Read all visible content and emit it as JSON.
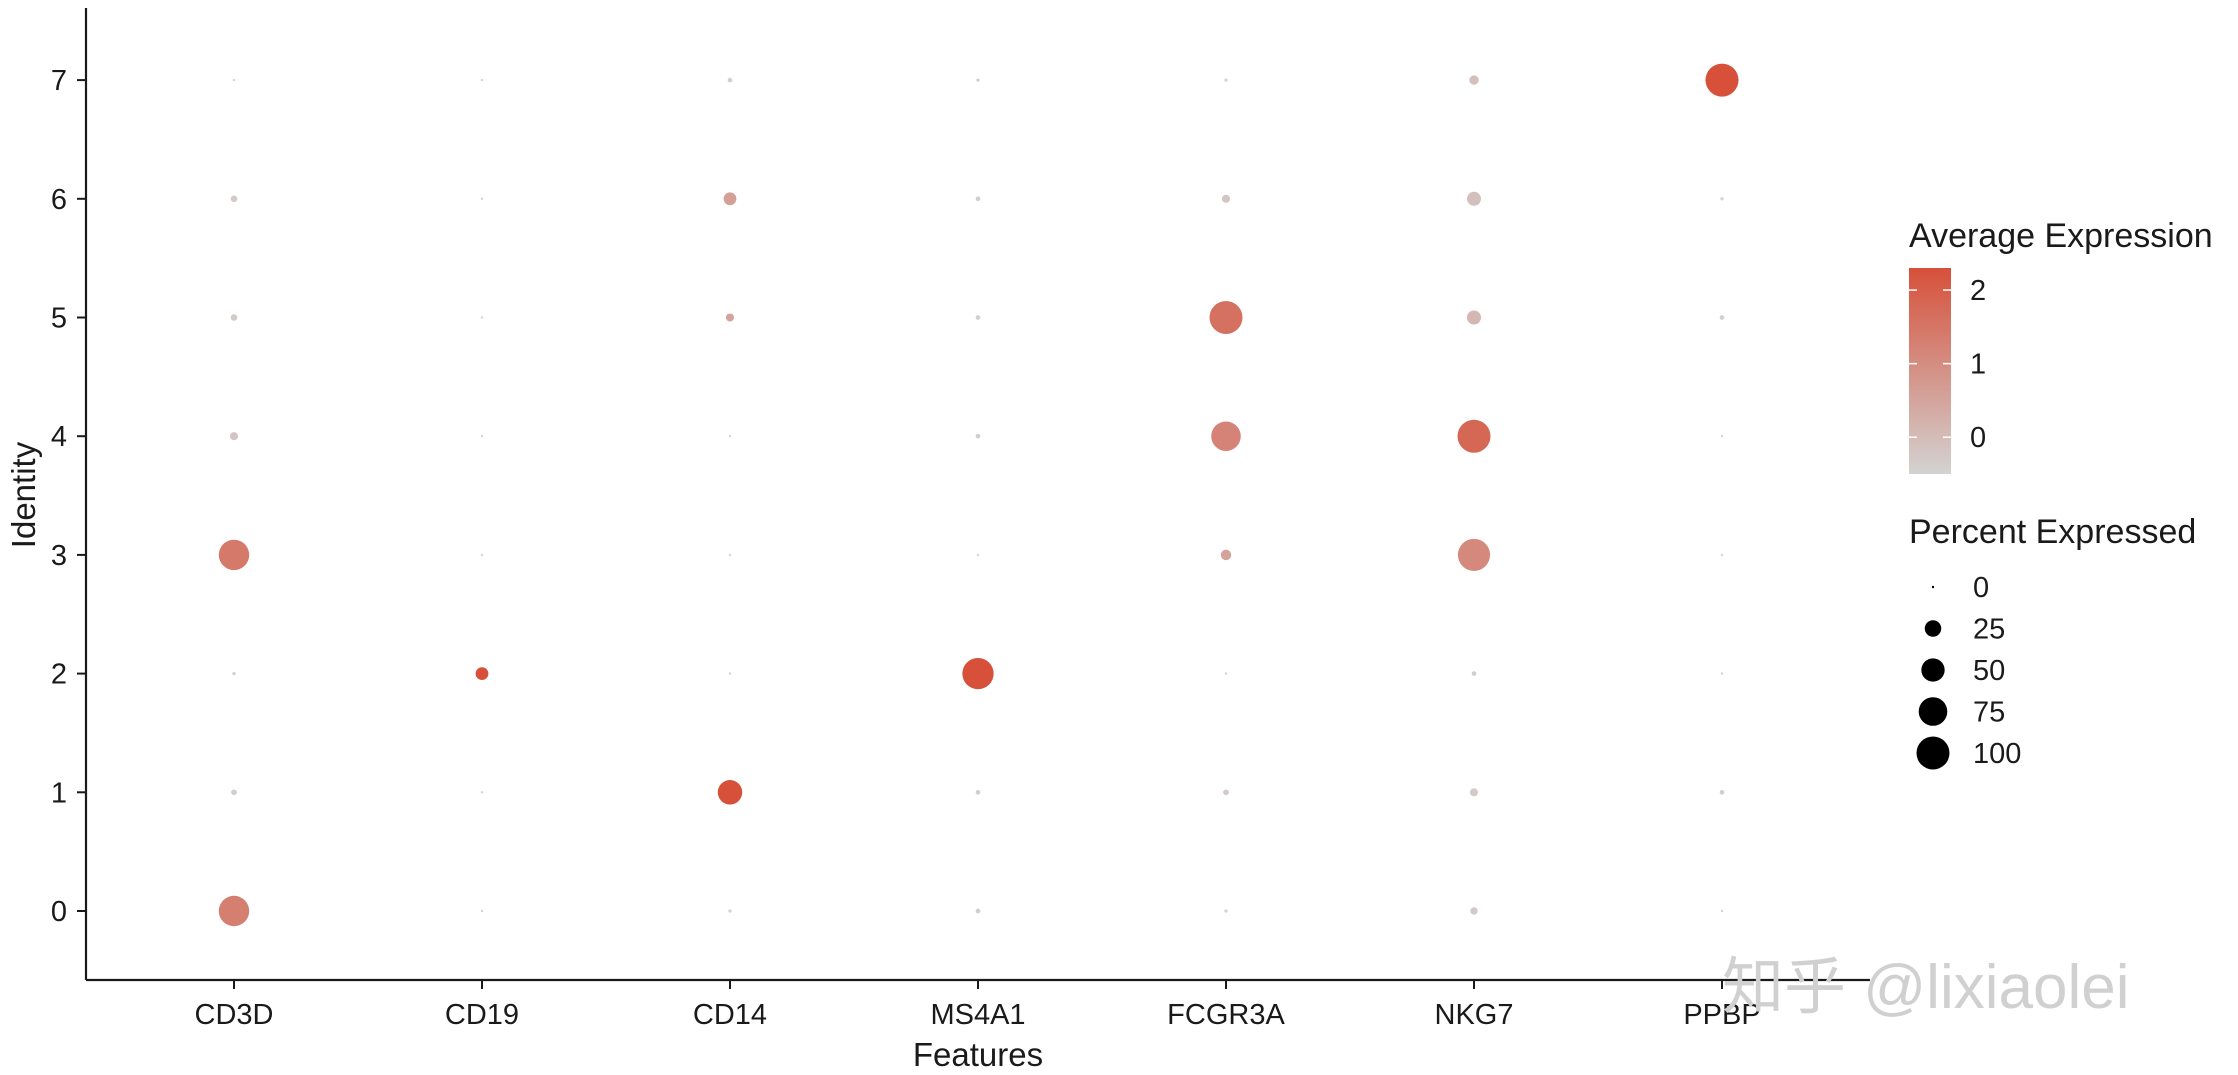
{
  "chart_data": {
    "type": "dot",
    "xlabel": "Features",
    "ylabel": "Identity",
    "features": [
      "CD3D",
      "CD19",
      "CD14",
      "MS4A1",
      "FCGR3A",
      "NKG7",
      "PPBP"
    ],
    "identities": [
      "0",
      "1",
      "2",
      "3",
      "4",
      "5",
      "6",
      "7"
    ],
    "color_scale": {
      "title": "Average Expression",
      "low": "#d3d3d3",
      "high": "#d6503a",
      "range": [
        -0.5,
        2.3
      ],
      "ticks": [
        0,
        1,
        2
      ]
    },
    "size_scale": {
      "title": "Percent Expressed",
      "ticks": [
        0,
        25,
        50,
        75,
        100
      ]
    },
    "points": [
      {
        "feature": "CD3D",
        "identity": "0",
        "avg_exp": 1.3,
        "pct_exp": 85
      },
      {
        "feature": "CD3D",
        "identity": "1",
        "avg_exp": -0.4,
        "pct_exp": 3
      },
      {
        "feature": "CD3D",
        "identity": "2",
        "avg_exp": -0.4,
        "pct_exp": 1
      },
      {
        "feature": "CD3D",
        "identity": "3",
        "avg_exp": 1.4,
        "pct_exp": 85
      },
      {
        "feature": "CD3D",
        "identity": "4",
        "avg_exp": -0.2,
        "pct_exp": 6
      },
      {
        "feature": "CD3D",
        "identity": "5",
        "avg_exp": -0.3,
        "pct_exp": 4
      },
      {
        "feature": "CD3D",
        "identity": "6",
        "avg_exp": -0.3,
        "pct_exp": 4
      },
      {
        "feature": "CD3D",
        "identity": "7",
        "avg_exp": -0.5,
        "pct_exp": 0
      },
      {
        "feature": "CD19",
        "identity": "0",
        "avg_exp": -0.5,
        "pct_exp": 0.5
      },
      {
        "feature": "CD19",
        "identity": "1",
        "avg_exp": -0.5,
        "pct_exp": 0.5
      },
      {
        "feature": "CD19",
        "identity": "2",
        "avg_exp": 2.3,
        "pct_exp": 15
      },
      {
        "feature": "CD19",
        "identity": "3",
        "avg_exp": -0.5,
        "pct_exp": 0.5
      },
      {
        "feature": "CD19",
        "identity": "4",
        "avg_exp": -0.5,
        "pct_exp": 0.5
      },
      {
        "feature": "CD19",
        "identity": "5",
        "avg_exp": -0.5,
        "pct_exp": 0.5
      },
      {
        "feature": "CD19",
        "identity": "6",
        "avg_exp": -0.5,
        "pct_exp": 0.5
      },
      {
        "feature": "CD19",
        "identity": "7",
        "avg_exp": -0.5,
        "pct_exp": 0
      },
      {
        "feature": "CD14",
        "identity": "0",
        "avg_exp": -0.5,
        "pct_exp": 1
      },
      {
        "feature": "CD14",
        "identity": "1",
        "avg_exp": 2.3,
        "pct_exp": 55
      },
      {
        "feature": "CD14",
        "identity": "2",
        "avg_exp": -0.5,
        "pct_exp": 0.5
      },
      {
        "feature": "CD14",
        "identity": "3",
        "avg_exp": -0.5,
        "pct_exp": 0.5
      },
      {
        "feature": "CD14",
        "identity": "4",
        "avg_exp": -0.5,
        "pct_exp": 0.5
      },
      {
        "feature": "CD14",
        "identity": "5",
        "avg_exp": 0.5,
        "pct_exp": 6
      },
      {
        "feature": "CD14",
        "identity": "6",
        "avg_exp": 0.6,
        "pct_exp": 15
      },
      {
        "feature": "CD14",
        "identity": "7",
        "avg_exp": -0.4,
        "pct_exp": 2
      },
      {
        "feature": "MS4A1",
        "identity": "0",
        "avg_exp": -0.4,
        "pct_exp": 2
      },
      {
        "feature": "MS4A1",
        "identity": "1",
        "avg_exp": -0.4,
        "pct_exp": 2
      },
      {
        "feature": "MS4A1",
        "identity": "2",
        "avg_exp": 2.3,
        "pct_exp": 90
      },
      {
        "feature": "MS4A1",
        "identity": "3",
        "avg_exp": -0.5,
        "pct_exp": 0.5
      },
      {
        "feature": "MS4A1",
        "identity": "4",
        "avg_exp": -0.4,
        "pct_exp": 2
      },
      {
        "feature": "MS4A1",
        "identity": "5",
        "avg_exp": -0.4,
        "pct_exp": 2
      },
      {
        "feature": "MS4A1",
        "identity": "6",
        "avg_exp": -0.4,
        "pct_exp": 2
      },
      {
        "feature": "MS4A1",
        "identity": "7",
        "avg_exp": -0.4,
        "pct_exp": 1
      },
      {
        "feature": "FCGR3A",
        "identity": "0",
        "avg_exp": -0.5,
        "pct_exp": 1
      },
      {
        "feature": "FCGR3A",
        "identity": "1",
        "avg_exp": -0.3,
        "pct_exp": 3
      },
      {
        "feature": "FCGR3A",
        "identity": "2",
        "avg_exp": -0.5,
        "pct_exp": 0.5
      },
      {
        "feature": "FCGR3A",
        "identity": "3",
        "avg_exp": 0.5,
        "pct_exp": 10
      },
      {
        "feature": "FCGR3A",
        "identity": "4",
        "avg_exp": 1.2,
        "pct_exp": 80
      },
      {
        "feature": "FCGR3A",
        "identity": "5",
        "avg_exp": 1.6,
        "pct_exp": 100
      },
      {
        "feature": "FCGR3A",
        "identity": "6",
        "avg_exp": -0.2,
        "pct_exp": 6
      },
      {
        "feature": "FCGR3A",
        "identity": "7",
        "avg_exp": -0.5,
        "pct_exp": 1
      },
      {
        "feature": "NKG7",
        "identity": "0",
        "avg_exp": -0.3,
        "pct_exp": 5
      },
      {
        "feature": "NKG7",
        "identity": "1",
        "avg_exp": -0.3,
        "pct_exp": 6
      },
      {
        "feature": "NKG7",
        "identity": "2",
        "avg_exp": -0.4,
        "pct_exp": 2
      },
      {
        "feature": "NKG7",
        "identity": "3",
        "avg_exp": 1.1,
        "pct_exp": 95
      },
      {
        "feature": "NKG7",
        "identity": "4",
        "avg_exp": 1.8,
        "pct_exp": 100
      },
      {
        "feature": "NKG7",
        "identity": "5",
        "avg_exp": 0.1,
        "pct_exp": 18
      },
      {
        "feature": "NKG7",
        "identity": "6",
        "avg_exp": -0.1,
        "pct_exp": 18
      },
      {
        "feature": "NKG7",
        "identity": "7",
        "avg_exp": -0.1,
        "pct_exp": 8
      },
      {
        "feature": "PPBP",
        "identity": "0",
        "avg_exp": -0.5,
        "pct_exp": 0.5
      },
      {
        "feature": "PPBP",
        "identity": "1",
        "avg_exp": -0.4,
        "pct_exp": 2
      },
      {
        "feature": "PPBP",
        "identity": "2",
        "avg_exp": -0.5,
        "pct_exp": 0.5
      },
      {
        "feature": "PPBP",
        "identity": "3",
        "avg_exp": -0.5,
        "pct_exp": 0.5
      },
      {
        "feature": "PPBP",
        "identity": "4",
        "avg_exp": -0.5,
        "pct_exp": 0.5
      },
      {
        "feature": "PPBP",
        "identity": "5",
        "avg_exp": -0.4,
        "pct_exp": 2
      },
      {
        "feature": "PPBP",
        "identity": "6",
        "avg_exp": -0.5,
        "pct_exp": 1
      },
      {
        "feature": "PPBP",
        "identity": "7",
        "avg_exp": 2.3,
        "pct_exp": 100
      }
    ]
  },
  "watermark": "知乎 @lixiaolei"
}
